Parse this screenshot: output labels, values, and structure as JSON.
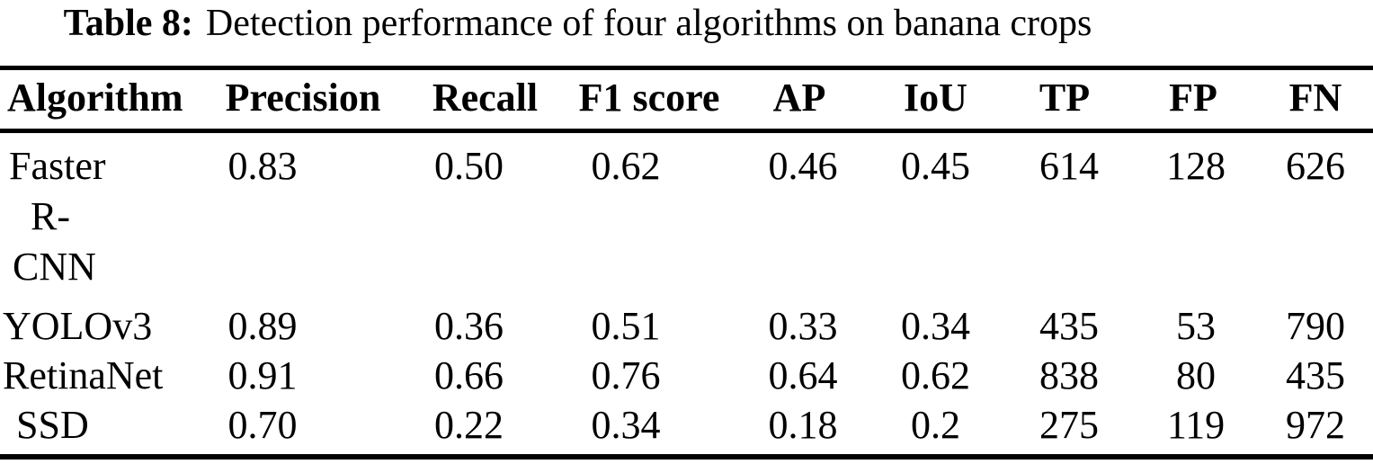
{
  "caption": {
    "label": "Table 8:",
    "text": "Detection performance of four algorithms on banana crops"
  },
  "columns": [
    "Algorithm",
    "Precision",
    "Recall",
    "F1 score",
    "AP",
    "IoU",
    "TP",
    "FP",
    "FN"
  ],
  "rows": [
    {
      "algorithm": "Faster R-CNN",
      "algorithm_lines": [
        "Faster",
        "R-",
        "CNN"
      ],
      "values": [
        "0.83",
        "0.50",
        "0.62",
        "0.46",
        "0.45",
        "614",
        "128",
        "626"
      ]
    },
    {
      "algorithm": "YOLOv3",
      "values": [
        "0.89",
        "0.36",
        "0.51",
        "0.33",
        "0.34",
        "435",
        "53",
        "790"
      ]
    },
    {
      "algorithm": "RetinaNet",
      "values": [
        "0.91",
        "0.66",
        "0.76",
        "0.64",
        "0.62",
        "838",
        "80",
        "435"
      ]
    },
    {
      "algorithm": "SSD",
      "values": [
        "0.70",
        "0.22",
        "0.34",
        "0.18",
        "0.2",
        "275",
        "119",
        "972"
      ]
    }
  ],
  "colors": {
    "background": "#ffffff",
    "text": "#000000",
    "rule": "#000000"
  }
}
